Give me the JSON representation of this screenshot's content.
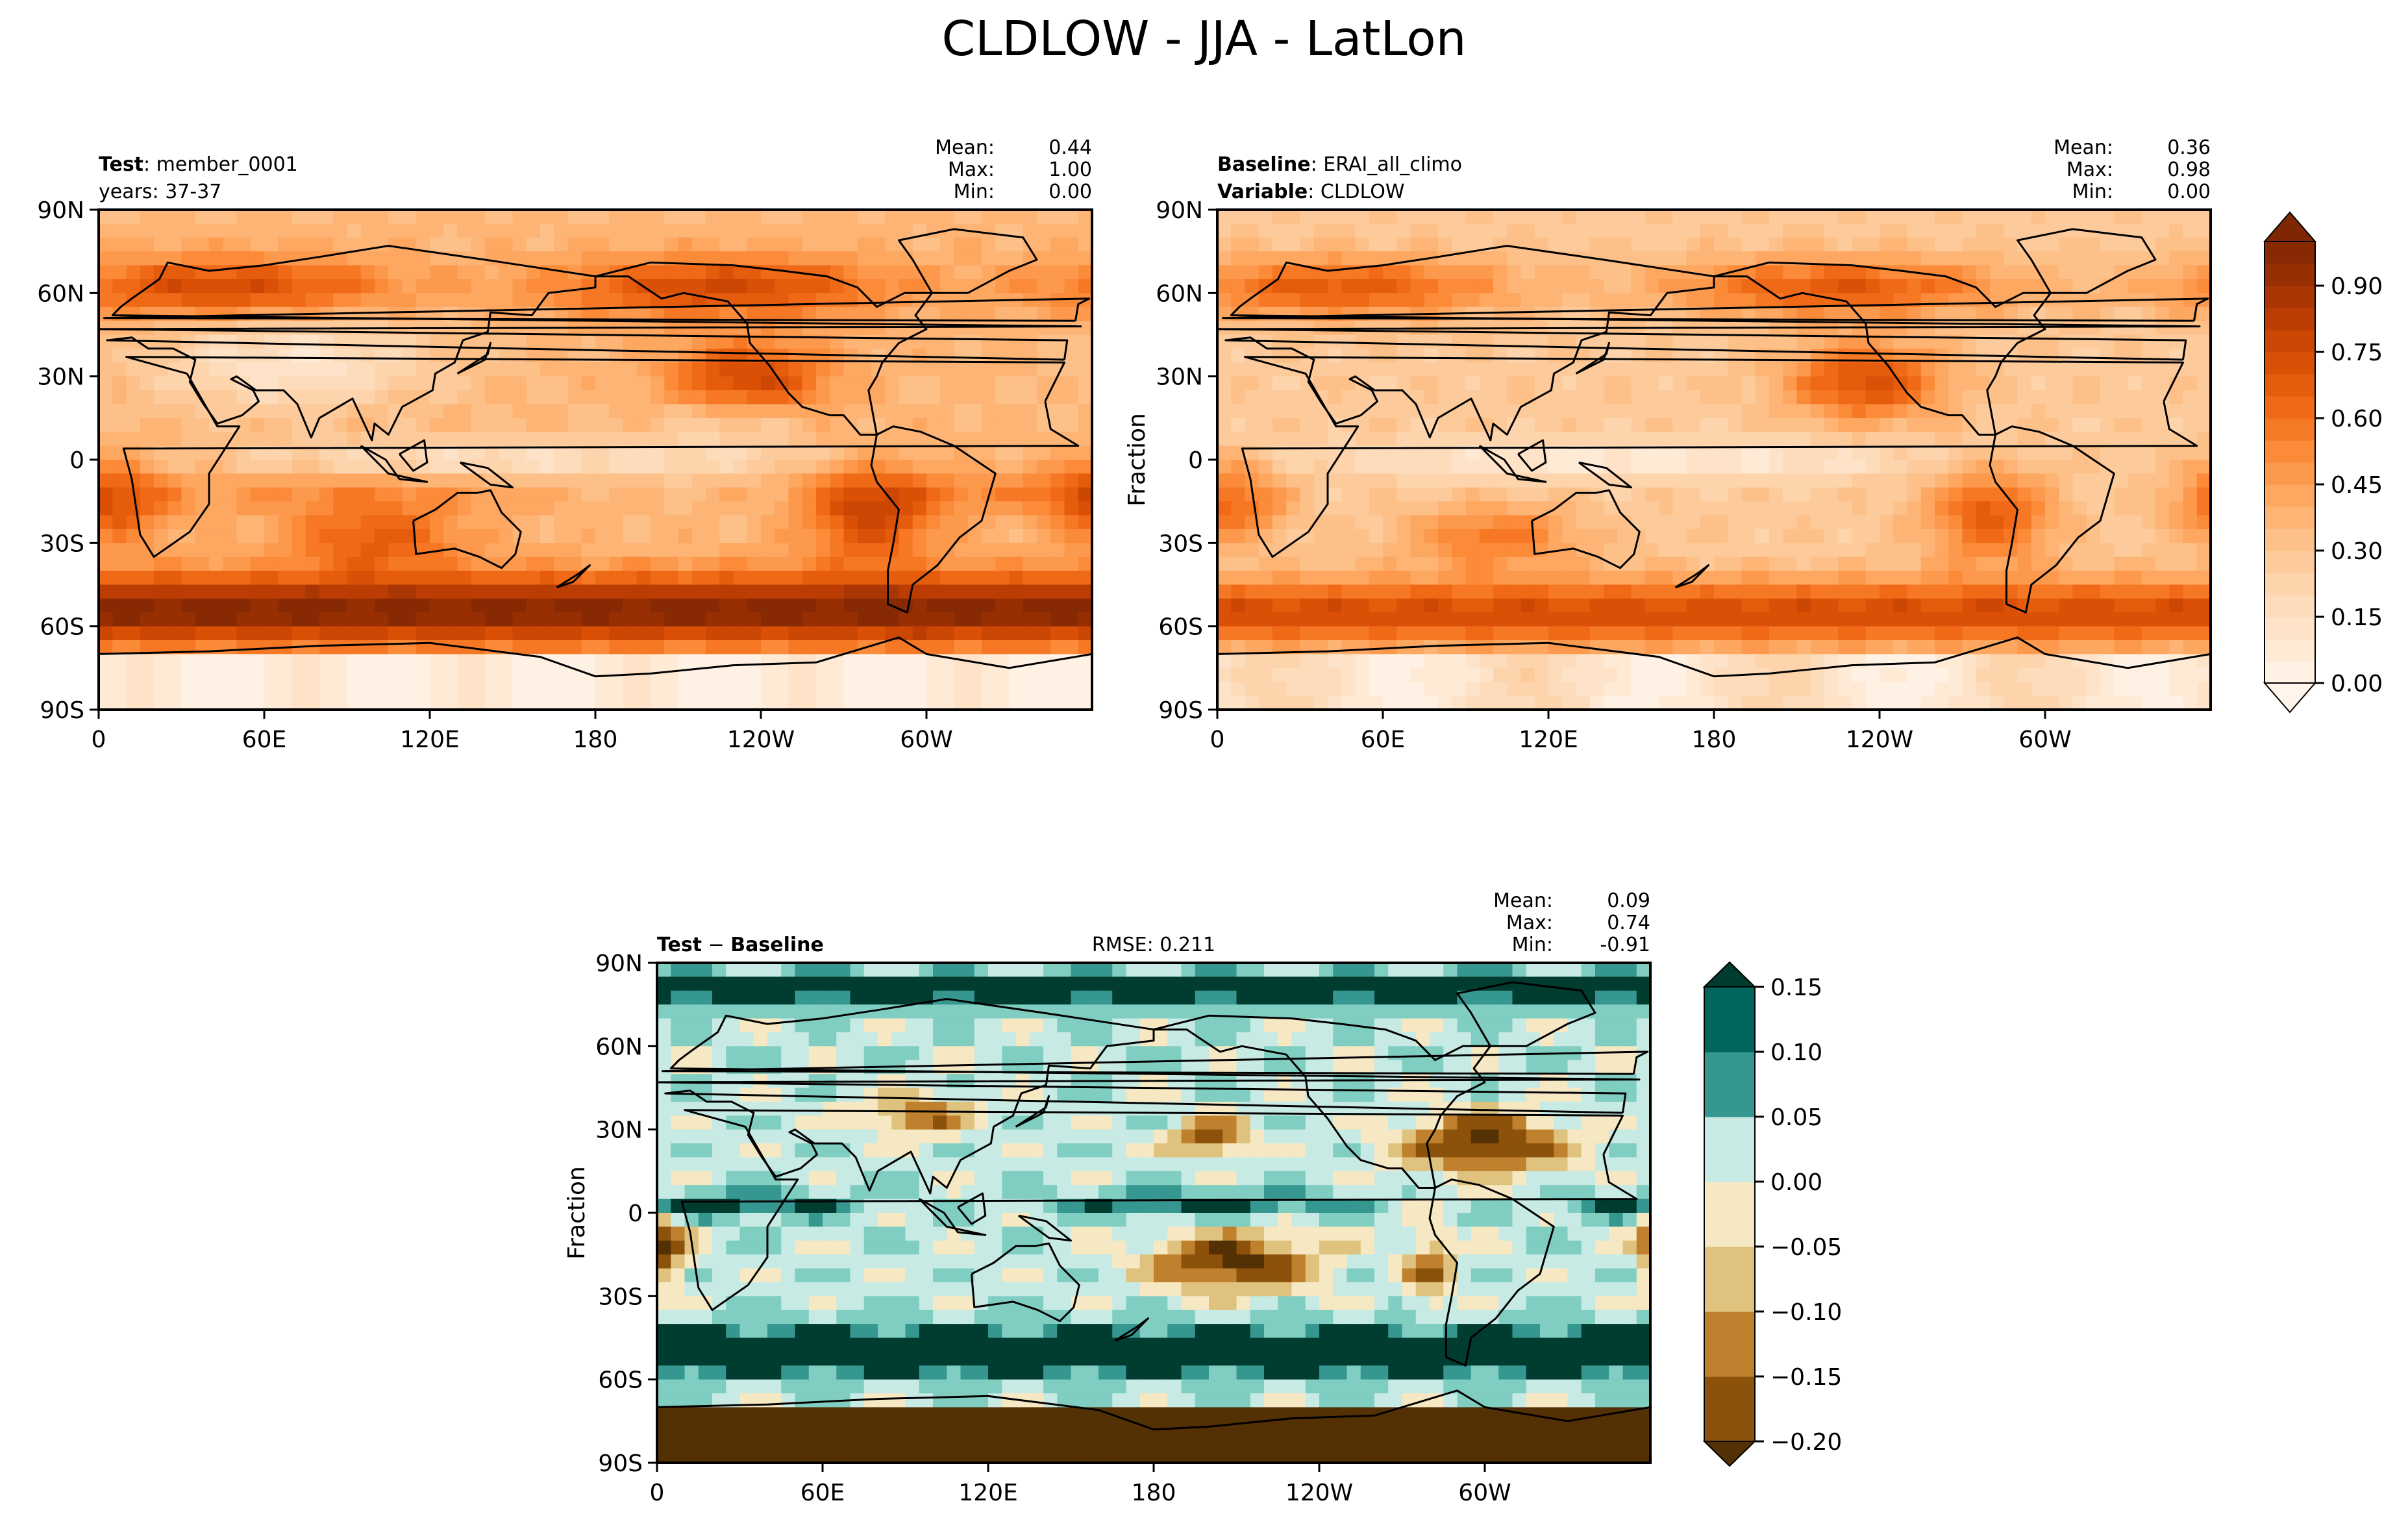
{
  "figure": {
    "title": "CLDLOW - JJA - LatLon"
  },
  "colors": {
    "seq": [
      "#fff5eb",
      "#fee6ce",
      "#fdd9b4",
      "#fdc692",
      "#fdae6b",
      "#fd9243",
      "#f3701b",
      "#e25508",
      "#c44103",
      "#a03203",
      "#7f2704"
    ],
    "div": [
      "#543005",
      "#8c510a",
      "#bf812d",
      "#dfc27d",
      "#f6e8c3",
      "#c7eae5",
      "#80cdc1",
      "#35978f",
      "#01665e",
      "#003c30"
    ],
    "coast": "#000000"
  },
  "chart_data": [
    {
      "type": "heatmap",
      "panel": "test",
      "title_left": [
        {
          "bold": "Test",
          "text": ": member_0001"
        },
        {
          "bold": "",
          "text": "years: 37-37"
        }
      ],
      "stats": {
        "mean_label": "Mean:",
        "mean": "0.44",
        "max_label": "Max:",
        "max": "1.00",
        "min_label": "Min:",
        "min": "0.00"
      },
      "xlabel": "",
      "ylabel": "",
      "xticks": [
        "0",
        "60E",
        "120E",
        "180",
        "120W",
        "60W"
      ],
      "yticks": [
        "90N",
        "60N",
        "30N",
        "0",
        "30S",
        "60S",
        "90S"
      ],
      "xlim": [
        0,
        360
      ],
      "ylim": [
        -90,
        90
      ],
      "colormap": "seq",
      "data_range": [
        0,
        1
      ],
      "description_note": "low cloud fraction, JJA; high over subtropical eastern oceans and Southern Ocean storm track"
    },
    {
      "type": "heatmap",
      "panel": "baseline",
      "title_left": [
        {
          "bold": "Baseline",
          "text": ": ERAI_all_climo"
        },
        {
          "bold": "Variable",
          "text": ": CLDLOW"
        }
      ],
      "stats": {
        "mean_label": "Mean:",
        "mean": "0.36",
        "max_label": "Max:",
        "max": "0.98",
        "min_label": "Min:",
        "min": "0.00"
      },
      "xlabel": "",
      "ylabel": "Fraction",
      "xticks": [
        "0",
        "60E",
        "120E",
        "180",
        "120W",
        "60W"
      ],
      "yticks": [
        "90N",
        "60N",
        "30N",
        "0",
        "30S",
        "60S",
        "90S"
      ],
      "xlim": [
        0,
        360
      ],
      "ylim": [
        -90,
        90
      ],
      "colormap": "seq",
      "colorbar": {
        "ticks": [
          "0.00",
          "0.15",
          "0.30",
          "0.45",
          "0.60",
          "0.75",
          "0.90"
        ],
        "range": [
          0,
          1
        ]
      }
    },
    {
      "type": "heatmap",
      "panel": "diff",
      "title_left": [
        {
          "bold": "Test",
          "text": " − ",
          "bold2": "Baseline"
        }
      ],
      "title_center": "RMSE: 0.211",
      "stats": {
        "mean_label": "Mean:",
        "mean": "0.09",
        "max_label": "Max:",
        "max": "0.74",
        "min_label": "Min:",
        "min": "-0.91"
      },
      "xlabel": "",
      "ylabel": "Fraction",
      "xticks": [
        "0",
        "60E",
        "120E",
        "180",
        "120W",
        "60W"
      ],
      "yticks": [
        "90N",
        "60N",
        "30N",
        "0",
        "30S",
        "60S",
        "90S"
      ],
      "xlim": [
        0,
        360
      ],
      "ylim": [
        -90,
        90
      ],
      "colormap": "div",
      "colorbar": {
        "ticks": [
          "0.15",
          "0.10",
          "0.05",
          "0.00",
          "−0.05",
          "−0.10",
          "−0.15",
          "−0.20"
        ],
        "levels": [
          -0.2,
          -0.15,
          -0.1,
          -0.05,
          0,
          0.05,
          0.1,
          0.15
        ]
      }
    }
  ]
}
